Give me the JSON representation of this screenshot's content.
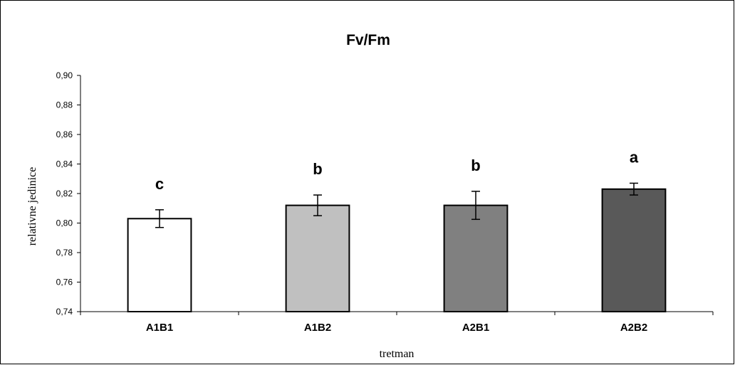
{
  "chart_data": {
    "type": "bar",
    "title": "Fv/Fm",
    "xlabel": "tretman",
    "ylabel": "relativne jedinice",
    "categories": [
      "A1B1",
      "A1B2",
      "A2B1",
      "A2B2"
    ],
    "values": [
      0.803,
      0.812,
      0.812,
      0.823
    ],
    "error": [
      0.006,
      0.007,
      0.0095,
      0.004
    ],
    "significance_letters": [
      "c",
      "b",
      "b",
      "a"
    ],
    "bar_colors": [
      "#ffffff",
      "#c0c0c0",
      "#808080",
      "#595959"
    ],
    "ylim": [
      0.74,
      0.9
    ],
    "yticks": [
      0.74,
      0.76,
      0.78,
      0.8,
      0.82,
      0.84,
      0.86,
      0.88,
      0.9
    ],
    "ytick_labels": [
      "0,74",
      "0,76",
      "0,78",
      "0,80",
      "0,82",
      "0,84",
      "0,86",
      "0,88",
      "0,90"
    ],
    "grid": false,
    "legend": "none"
  }
}
